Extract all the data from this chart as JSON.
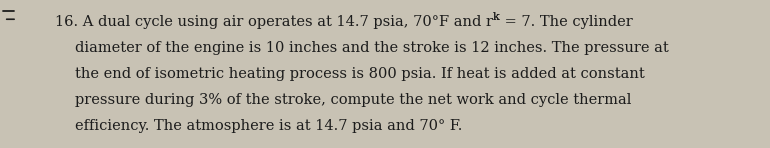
{
  "line1_pre": "16. A dual cycle using air operates at 14.7 psia, 70°F and r",
  "line1_sub": "k",
  "line1_post": " = 7. The cylinder",
  "line2": "     diameter of the engine is 10 inches and the stroke is 12 inches. The pressure at",
  "line3": "     the end of isometric heating process is 800 psia. If heat is added at constant",
  "line4": "     pressure during 3% of the stroke, compute the net work and cycle thermal",
  "line5": "     efficiency. The atmosphere is at 14.7 psia and 70° F.",
  "text_color": "#1c1c1c",
  "background_color": "#c8c2b4",
  "font_size": 10.5,
  "dash_color": "#1c1c1c"
}
